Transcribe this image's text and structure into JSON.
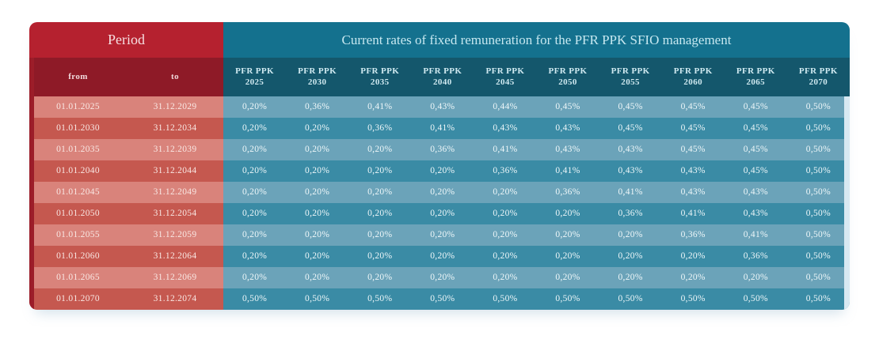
{
  "chart_data": {
    "type": "table",
    "title": "Current rates of fixed remuneration for the PFR PPK SFIO management",
    "period_header": "Period",
    "from_label": "from",
    "to_label": "to",
    "fund_columns": [
      {
        "name": "PFR PPK",
        "year": "2025"
      },
      {
        "name": "PFR PPK",
        "year": "2030"
      },
      {
        "name": "PFR PPK",
        "year": "2035"
      },
      {
        "name": "PFR PPK",
        "year": "2040"
      },
      {
        "name": "PFR PPK",
        "year": "2045"
      },
      {
        "name": "PFR PPK",
        "year": "2050"
      },
      {
        "name": "PFR PPK",
        "year": "2055"
      },
      {
        "name": "PFR PPK",
        "year": "2060"
      },
      {
        "name": "PFR PPK",
        "year": "2065"
      },
      {
        "name": "PFR PPK",
        "year": "2070"
      }
    ],
    "rows": [
      {
        "from": "01.01.2025",
        "to": "31.12.2029",
        "values": [
          "0,20%",
          "0,36%",
          "0,41%",
          "0,43%",
          "0,44%",
          "0,45%",
          "0,45%",
          "0,45%",
          "0,45%",
          "0,50%"
        ]
      },
      {
        "from": "01.01.2030",
        "to": "31.12.2034",
        "values": [
          "0,20%",
          "0,20%",
          "0,36%",
          "0,41%",
          "0,43%",
          "0,43%",
          "0,45%",
          "0,45%",
          "0,45%",
          "0,50%"
        ]
      },
      {
        "from": "01.01.2035",
        "to": "31.12.2039",
        "values": [
          "0,20%",
          "0,20%",
          "0,20%",
          "0,36%",
          "0,41%",
          "0,43%",
          "0,43%",
          "0,45%",
          "0,45%",
          "0,50%"
        ]
      },
      {
        "from": "01.01.2040",
        "to": "31.12.2044",
        "values": [
          "0,20%",
          "0,20%",
          "0,20%",
          "0,20%",
          "0,36%",
          "0,41%",
          "0,43%",
          "0,43%",
          "0,45%",
          "0,50%"
        ]
      },
      {
        "from": "01.01.2045",
        "to": "31.12.2049",
        "values": [
          "0,20%",
          "0,20%",
          "0,20%",
          "0,20%",
          "0,20%",
          "0,36%",
          "0,41%",
          "0,43%",
          "0,43%",
          "0,50%"
        ]
      },
      {
        "from": "01.01.2050",
        "to": "31.12.2054",
        "values": [
          "0,20%",
          "0,20%",
          "0,20%",
          "0,20%",
          "0,20%",
          "0,20%",
          "0,36%",
          "0,41%",
          "0,43%",
          "0,50%"
        ]
      },
      {
        "from": "01.01.2055",
        "to": "31.12.2059",
        "values": [
          "0,20%",
          "0,20%",
          "0,20%",
          "0,20%",
          "0,20%",
          "0,20%",
          "0,20%",
          "0,36%",
          "0,41%",
          "0,50%"
        ]
      },
      {
        "from": "01.01.2060",
        "to": "31.12.2064",
        "values": [
          "0,20%",
          "0,20%",
          "0,20%",
          "0,20%",
          "0,20%",
          "0,20%",
          "0,20%",
          "0,20%",
          "0,36%",
          "0,50%"
        ]
      },
      {
        "from": "01.01.2065",
        "to": "31.12.2069",
        "values": [
          "0,20%",
          "0,20%",
          "0,20%",
          "0,20%",
          "0,20%",
          "0,20%",
          "0,20%",
          "0,20%",
          "0,20%",
          "0,50%"
        ]
      },
      {
        "from": "01.01.2070",
        "to": "31.12.2074",
        "values": [
          "0,50%",
          "0,50%",
          "0,50%",
          "0,50%",
          "0,50%",
          "0,50%",
          "0,50%",
          "0,50%",
          "0,50%",
          "0,50%"
        ]
      }
    ]
  },
  "colors": {
    "red_header": "#b5212f",
    "red_subheader": "#8e1a27",
    "teal_header": "#14718e",
    "teal_subheader": "#14576c",
    "row_red_light": "#d9837b",
    "row_red_dark": "#c5584f",
    "row_teal_light": "#6ba3b9",
    "row_teal_dark": "#3a8ba5",
    "left_edge_strip": "#9c1d29",
    "right_edge_strip": "#d8e9f2"
  }
}
